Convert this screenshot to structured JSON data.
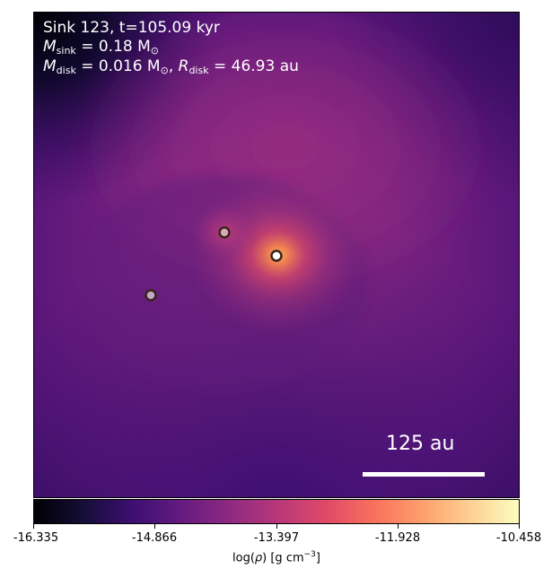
{
  "header": {
    "line1": "Sink 123, t=105.09 kyr",
    "sink_mass_symbol": "M",
    "sink_mass_subscript": "sink",
    "sink_mass_value": " = 0.18 M",
    "sink_mass_unit_subscript": "⊙",
    "disk_mass_symbol": "M",
    "disk_mass_subscript": "disk",
    "disk_mass_value": " = 0.016 M",
    "disk_mass_unit_subscript": "⊙",
    "disk_radius_prefix": ", ",
    "disk_radius_symbol": "R",
    "disk_radius_subscript": "disk",
    "disk_radius_value": " = 46.93 au"
  },
  "scalebar": {
    "label": "125 au"
  },
  "colorbar": {
    "colormap": "inferno",
    "ticks": [
      "-16.335",
      "-14.866",
      "-13.397",
      "-11.928",
      "-10.458"
    ],
    "label_prefix": "log(",
    "label_symbol": "ρ",
    "label_middle": ") [g cm",
    "label_sup": "−3",
    "label_suffix": "]"
  },
  "sinks": [
    {
      "name": "primary-sink",
      "fill": "#ffffff"
    },
    {
      "name": "secondary-sink",
      "fill": "#d8a8b8"
    },
    {
      "name": "tertiary-sink",
      "fill": "#c4a8c8"
    }
  ],
  "colors": {
    "background_dark": "#000004",
    "halo_bright": "#f5a04c",
    "purple_base": "#64197a"
  }
}
